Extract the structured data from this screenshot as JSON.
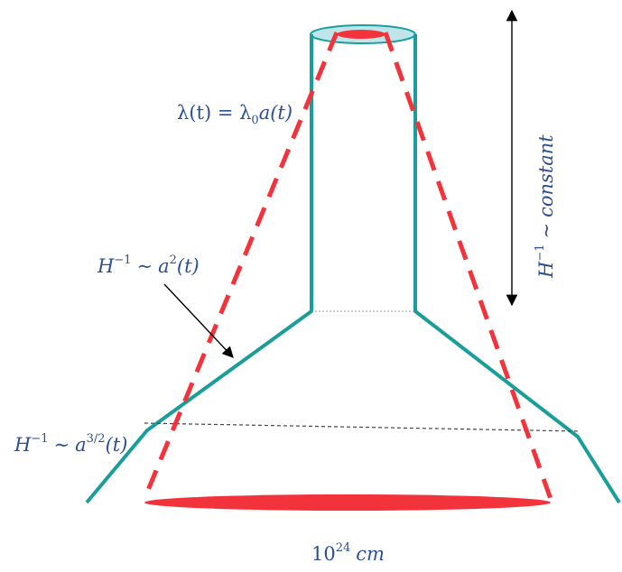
{
  "colors": {
    "hubble": "#1a9e9a",
    "wavelength": "#f2333c",
    "label": "#2a4f93",
    "ellipse_top": "#bfe4ea",
    "arrow": "#000000",
    "dotted": "#444444"
  },
  "labels": {
    "wavelength_lambda": "λ",
    "wavelength_lhs_arg": "(t) = λ",
    "wavelength_sub": "0",
    "wavelength_rhs": "a(t)",
    "h_base": "H",
    "h_exp": "−1",
    "tilde": "∼",
    "a2_base": "a",
    "a2_exp": "2",
    "a2_arg": "(t)",
    "a32_base": "a",
    "a32_exp": "3/2",
    "a32_arg": "(t)",
    "constant": "constant",
    "bottom_base": "10",
    "bottom_exp": "24",
    "bottom_unit": "cm"
  }
}
